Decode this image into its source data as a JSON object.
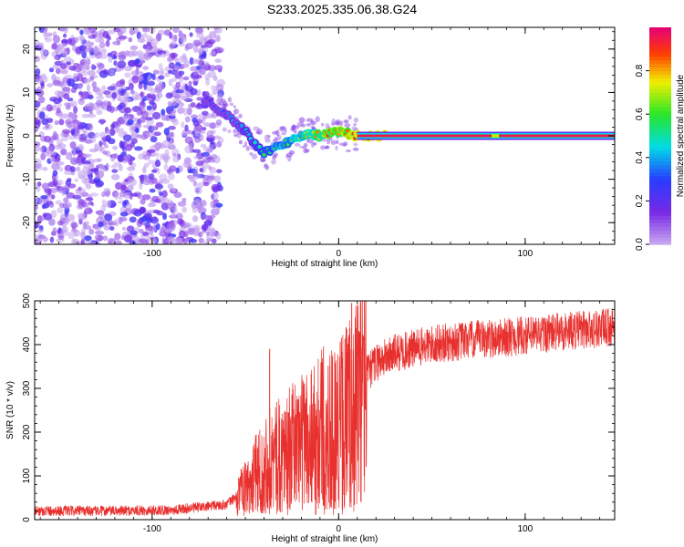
{
  "title": "S233.2025.335.06.38.G24",
  "colorbar": {
    "label": "Normalized spectral amplitude",
    "range": [
      0,
      1
    ],
    "ticks": [
      "0.0",
      "0.2",
      "0.4",
      "0.6",
      "0.8"
    ],
    "tick_values": [
      0.0,
      0.2,
      0.4,
      0.6,
      0.8
    ]
  },
  "chart_data": [
    {
      "type": "heatmap",
      "xlabel": "Height of straight line (km)",
      "ylabel": "Frequency (Hz)",
      "xlim": [
        -163,
        148
      ],
      "ylim": [
        -25,
        25
      ],
      "xticks": [
        -100,
        0,
        100
      ],
      "yticks": [
        -20,
        -10,
        0,
        10,
        20
      ],
      "tick_labels_x": [
        "-100",
        "0",
        "100"
      ],
      "tick_labels_y": [
        "-20",
        "-10",
        "0",
        "10",
        "20"
      ],
      "ridge": {
        "x": [
          -70,
          -65,
          -60,
          -55,
          -50,
          -45,
          -40,
          -35,
          -30,
          -25,
          -20,
          -15,
          -10,
          -5,
          0,
          5,
          10,
          20,
          40,
          60,
          80,
          100,
          120,
          148
        ],
        "y": [
          8,
          6,
          5,
          3,
          1,
          -2,
          -4,
          -3,
          -2,
          -1,
          0,
          0.5,
          0,
          0.5,
          1,
          0.5,
          0,
          0,
          0,
          0,
          0,
          0,
          0,
          0
        ]
      }
    },
    {
      "type": "line",
      "xlabel": "Height of straight line (km)",
      "ylabel": "SNR (10 * v/v)",
      "xlim": [
        -163,
        148
      ],
      "ylim": [
        0,
        500
      ],
      "xticks": [
        -100,
        0,
        100
      ],
      "yticks": [
        0,
        100,
        200,
        300,
        400,
        500
      ],
      "tick_labels_x": [
        "-100",
        "0",
        "100"
      ],
      "tick_labels_y": [
        "0",
        "100",
        "200",
        "300",
        "400",
        "500"
      ],
      "envelope": {
        "x": [
          -163,
          -120,
          -90,
          -70,
          -60,
          -50,
          -45,
          -40,
          -30,
          -20,
          -10,
          0,
          5,
          10,
          15,
          20,
          30,
          50,
          70,
          100,
          120,
          148
        ],
        "y": [
          20,
          20,
          22,
          30,
          35,
          70,
          100,
          130,
          150,
          180,
          210,
          220,
          240,
          280,
          330,
          360,
          380,
          400,
          410,
          420,
          430,
          440
        ]
      },
      "spikes": [
        {
          "x": -37,
          "y": 390
        },
        {
          "x": 7,
          "y": 495
        },
        {
          "x": 4,
          "y": 440
        }
      ],
      "color": "#e8312e"
    }
  ]
}
